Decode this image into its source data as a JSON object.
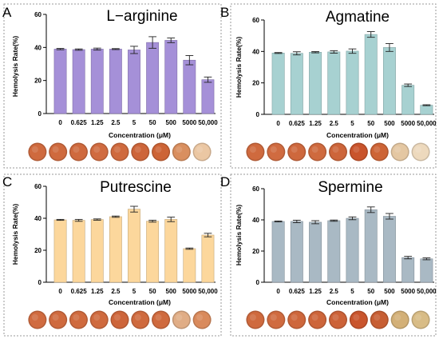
{
  "chart_data": [
    {
      "type": "bar",
      "panel": "A",
      "title": "L−arginine",
      "xlabel": "Concentration (μM)",
      "ylabel": "Hemolysis Rate(%)",
      "categories": [
        "0",
        "0.625",
        "1.25",
        "2.5",
        "5",
        "50",
        "500",
        "5000",
        "50,000"
      ],
      "values": [
        39,
        38.7,
        39,
        39,
        38.5,
        43,
        44.3,
        32.3,
        20.5
      ],
      "errors": [
        0.4,
        0.4,
        0.6,
        0.3,
        2.2,
        3.5,
        1.4,
        2.8,
        1.6
      ],
      "ylim": [
        0,
        60
      ],
      "yticks": [
        "0",
        "20",
        "40",
        "60"
      ],
      "bar_color": "#a590d8",
      "well_colors": [
        "#cf6a3e",
        "#cf6a3e",
        "#cf6a3e",
        "#d06b40",
        "#cf6a3e",
        "#cd653a",
        "#cd6436",
        "#d98f5f",
        "#ebc7a3"
      ]
    },
    {
      "type": "bar",
      "panel": "B",
      "title": "Agmatine",
      "xlabel": "Concentration (μM)",
      "ylabel": "Hemolysis Rate(%)",
      "categories": [
        "0",
        "0.625",
        "1.25",
        "2.5",
        "5",
        "50",
        "500",
        "5000",
        "50,000"
      ],
      "values": [
        39,
        38.8,
        39.5,
        39.7,
        40.2,
        50.8,
        42.5,
        18.5,
        5.8
      ],
      "errors": [
        0.3,
        1.0,
        0.4,
        0.8,
        1.4,
        1.8,
        2.5,
        0.8,
        0.3
      ],
      "ylim": [
        0,
        60
      ],
      "yticks": [
        "0",
        "20",
        "40",
        "60"
      ],
      "bar_color": "#a7d1d1",
      "well_colors": [
        "#cf6a3e",
        "#d06b40",
        "#ce683d",
        "#cf6a3e",
        "#cd653a",
        "#c9542c",
        "#cd6436",
        "#e4c7a2",
        "#edd9bd"
      ]
    },
    {
      "type": "bar",
      "panel": "C",
      "title": "Putrescine",
      "xlabel": "Concentration (μM)",
      "ylabel": "Hemolysis Rate(%)",
      "categories": [
        "0",
        "0.625",
        "1.25",
        "2.5",
        "5",
        "50",
        "500",
        "5000",
        "50,000"
      ],
      "values": [
        39,
        38.7,
        39.2,
        41,
        45.7,
        38.2,
        39.3,
        21,
        29.5
      ],
      "errors": [
        0.3,
        0.6,
        0.4,
        0.4,
        1.8,
        0.6,
        1.4,
        0.4,
        1.1
      ],
      "ylim": [
        0,
        60
      ],
      "yticks": [
        "0",
        "20",
        "40",
        "60"
      ],
      "bar_color": "#fcd79c",
      "well_colors": [
        "#d06b40",
        "#cf6a3e",
        "#cf6a3e",
        "#cf6a3e",
        "#cd653a",
        "#cf6a3e",
        "#cf6a3e",
        "#e0ad86",
        "#d98a5c"
      ]
    },
    {
      "type": "bar",
      "panel": "D",
      "title": "Spermine",
      "xlabel": "Concentration (μM)",
      "ylabel": "Hemolysis Rate(%)",
      "categories": [
        "0",
        "0.625",
        "1.25",
        "2.5",
        "5",
        "50",
        "500",
        "5000",
        "50,000"
      ],
      "values": [
        39,
        39,
        38.5,
        39.5,
        41,
        46.5,
        42.3,
        15.8,
        15
      ],
      "errors": [
        0.3,
        0.8,
        1.0,
        0.4,
        0.9,
        1.8,
        1.8,
        0.8,
        0.6
      ],
      "ylim": [
        0,
        60
      ],
      "yticks": [
        "0",
        "20",
        "40",
        "60"
      ],
      "bar_color": "#a9b9c4",
      "well_colors": [
        "#cf6a3e",
        "#d06b40",
        "#ce673c",
        "#cd653a",
        "#cc6238",
        "#c9552d",
        "#c75e33",
        "#d3b077",
        "#d8bc86"
      ]
    }
  ]
}
